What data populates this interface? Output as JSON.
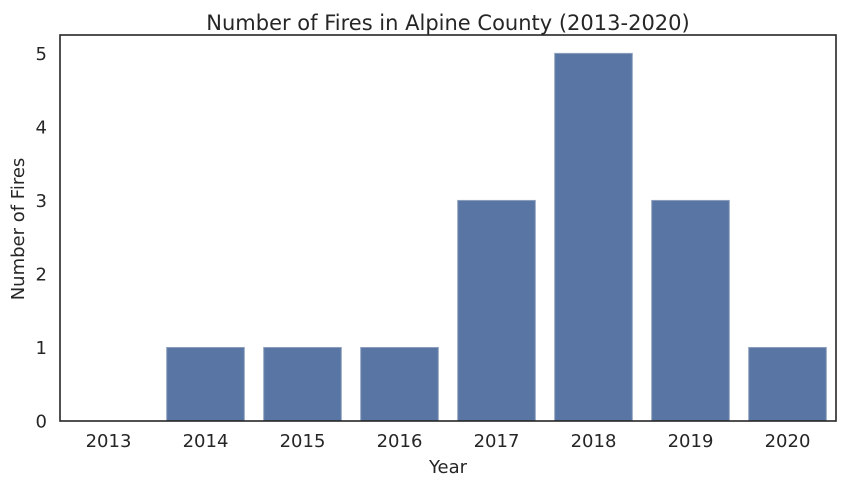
{
  "chart_data": {
    "type": "bar",
    "title": "Number of Fires in Alpine County (2013-2020)",
    "xlabel": "Year",
    "ylabel": "Number of Fires",
    "categories": [
      "2013",
      "2014",
      "2015",
      "2016",
      "2017",
      "2018",
      "2019",
      "2020"
    ],
    "values": [
      0,
      1,
      1,
      1,
      3,
      5,
      3,
      1
    ],
    "ylim": [
      0,
      5.25
    ],
    "yticks": [
      0,
      1,
      2,
      3,
      4,
      5
    ],
    "grid": false,
    "legend": "none",
    "bar_color": "#5875a4",
    "bar_edge_color": "#8d9fbc",
    "text_color": "#262626",
    "axis_color": "#262626"
  }
}
